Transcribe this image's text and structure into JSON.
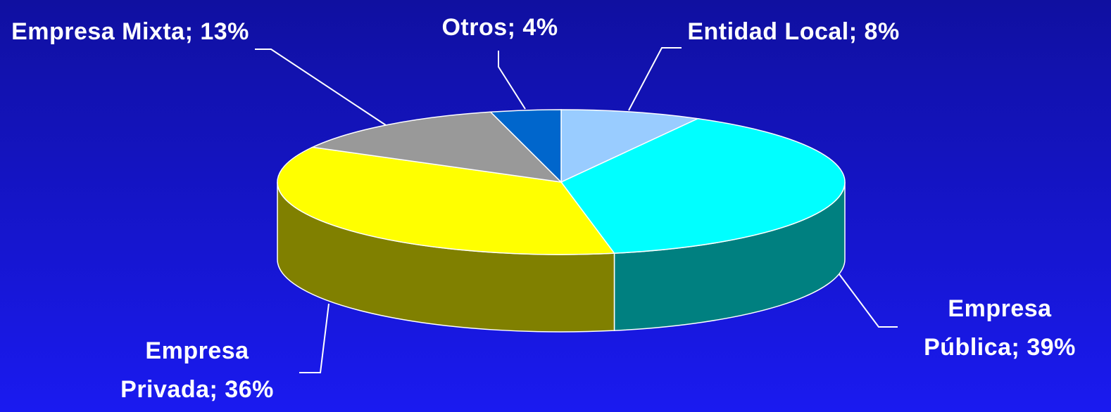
{
  "chart_data": {
    "type": "pie3d",
    "categories": [
      "Entidad Local",
      "Empresa Pública",
      "Empresa Privada",
      "Empresa Mixta",
      "Otros"
    ],
    "values": [
      8,
      39,
      36,
      13,
      4
    ],
    "value_labels": [
      "8%",
      "39%",
      "36%",
      "13%",
      "4%"
    ],
    "label_separator": ";",
    "colors": [
      "#99ccff",
      "#00ffff",
      "#ffff00",
      "#999999",
      "#0066cc"
    ],
    "side_colors": [
      "#5c7a99",
      "#008080",
      "#808000",
      "#5c5c5c",
      "#003d7a"
    ]
  }
}
